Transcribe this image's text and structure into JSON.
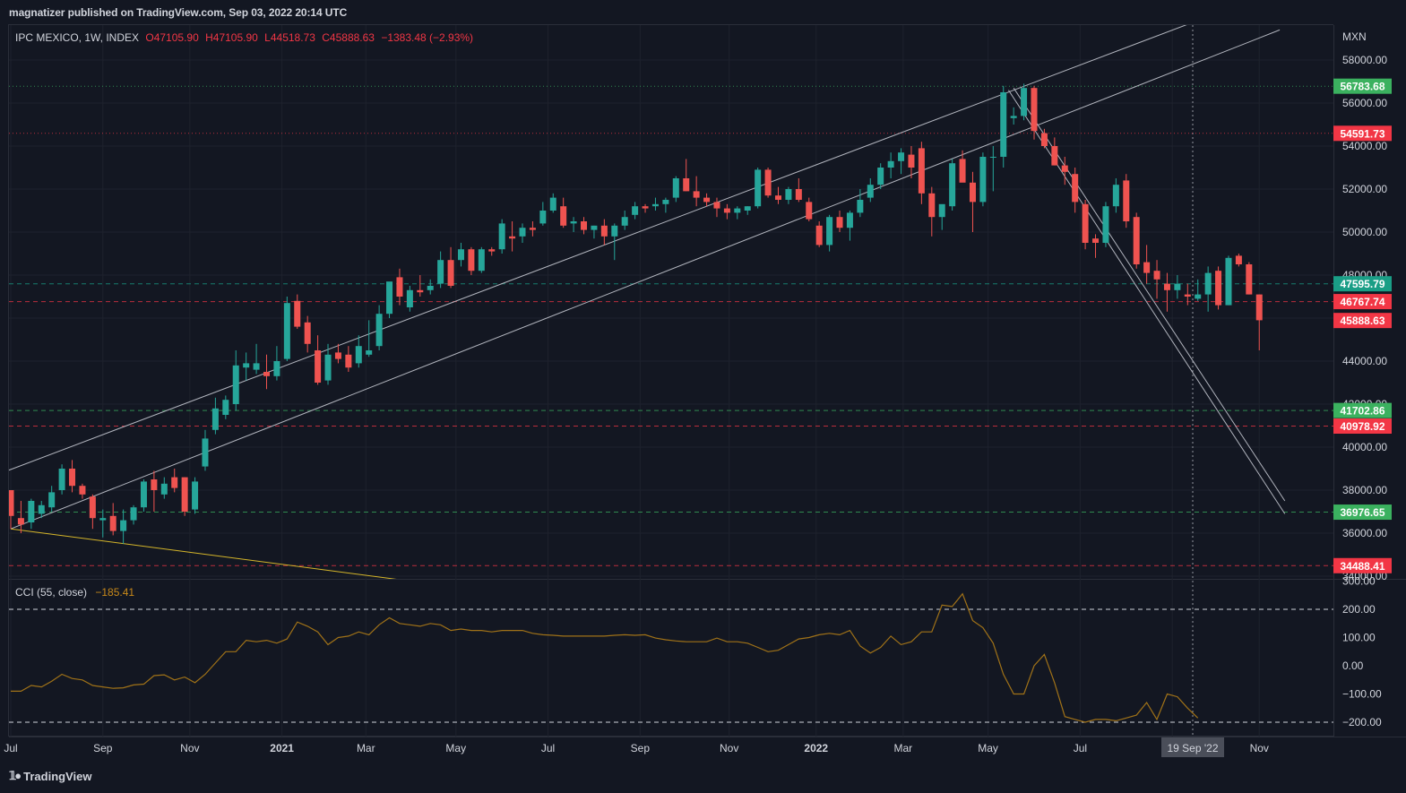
{
  "header": {
    "publisher": "magnatizer published on TradingView.com, Sep 03, 2022 20:14 UTC"
  },
  "legend": {
    "symbol": "IPC MEXICO, 1W, INDEX",
    "open": "O47105.90",
    "high": "H47105.90",
    "low": "L44518.73",
    "close": "C45888.63",
    "change": "−1383.48 (−2.93%)"
  },
  "footer": {
    "brand": "TradingView"
  },
  "colors": {
    "background": "#131722",
    "up": "#26a69a",
    "down": "#ef5350",
    "trendline": "#b2b5be",
    "support_line": "#d4b52a",
    "cci_line": "#a07218",
    "green_tag": "#3bb15f",
    "red_tag": "#f23645",
    "teal_tag": "#1a9e86"
  },
  "chart_data": [
    {
      "type": "candlestick",
      "title": "IPC MEXICO, 1W, INDEX",
      "currency": "MXN",
      "ylim": [
        33200,
        59800
      ],
      "y_ticks": [
        34000,
        36000,
        38000,
        40000,
        42000,
        44000,
        46000,
        48000,
        50000,
        52000,
        54000,
        56000,
        58000
      ],
      "x_ticks": [
        "Jul",
        "Sep",
        "Nov",
        "2021",
        "Mar",
        "May",
        "Jul",
        "Sep",
        "Nov",
        "2022",
        "Mar",
        "May",
        "Jul",
        "Sep",
        "Nov"
      ],
      "x_tick_weeks": [
        0,
        9,
        17.5,
        26.5,
        34.7,
        43.5,
        52.5,
        61.5,
        70.2,
        78.7,
        87.2,
        95.5,
        104.5,
        113.5,
        122
      ],
      "crosshair_label": "19 Sep '22",
      "crosshair_week": 115.5,
      "grid": true,
      "candles": [
        {
          "o": 38000,
          "h": 38000,
          "l": 36200,
          "c": 36800
        },
        {
          "o": 36700,
          "h": 37500,
          "l": 36000,
          "c": 36400
        },
        {
          "o": 36500,
          "h": 37600,
          "l": 36200,
          "c": 37500
        },
        {
          "o": 36900,
          "h": 37500,
          "l": 36700,
          "c": 37300
        },
        {
          "o": 37200,
          "h": 38200,
          "l": 37000,
          "c": 37900
        },
        {
          "o": 38000,
          "h": 39200,
          "l": 37800,
          "c": 39000
        },
        {
          "o": 39000,
          "h": 39400,
          "l": 37900,
          "c": 38200
        },
        {
          "o": 38200,
          "h": 38300,
          "l": 37600,
          "c": 37800
        },
        {
          "o": 37700,
          "h": 37800,
          "l": 36200,
          "c": 36700
        },
        {
          "o": 36600,
          "h": 37100,
          "l": 35800,
          "c": 36700
        },
        {
          "o": 36800,
          "h": 37400,
          "l": 35900,
          "c": 36100
        },
        {
          "o": 36100,
          "h": 37100,
          "l": 35500,
          "c": 36600
        },
        {
          "o": 36600,
          "h": 37300,
          "l": 36400,
          "c": 37200
        },
        {
          "o": 37200,
          "h": 38500,
          "l": 37000,
          "c": 38400
        },
        {
          "o": 38500,
          "h": 38900,
          "l": 37000,
          "c": 38000
        },
        {
          "o": 37800,
          "h": 38600,
          "l": 37600,
          "c": 38300
        },
        {
          "o": 38600,
          "h": 39000,
          "l": 37900,
          "c": 38100
        },
        {
          "o": 38600,
          "h": 38600,
          "l": 36800,
          "c": 37000
        },
        {
          "o": 37100,
          "h": 38600,
          "l": 36900,
          "c": 38400
        },
        {
          "o": 39100,
          "h": 40800,
          "l": 38900,
          "c": 40400
        },
        {
          "o": 40800,
          "h": 42300,
          "l": 40600,
          "c": 41800
        },
        {
          "o": 41500,
          "h": 42400,
          "l": 41300,
          "c": 42200
        },
        {
          "o": 42000,
          "h": 44500,
          "l": 41700,
          "c": 43800
        },
        {
          "o": 43700,
          "h": 44400,
          "l": 43100,
          "c": 43900
        },
        {
          "o": 43600,
          "h": 44800,
          "l": 43400,
          "c": 43900
        },
        {
          "o": 43500,
          "h": 44300,
          "l": 42700,
          "c": 43300
        },
        {
          "o": 43300,
          "h": 44700,
          "l": 43100,
          "c": 44000
        },
        {
          "o": 44100,
          "h": 47000,
          "l": 44000,
          "c": 46700
        },
        {
          "o": 46800,
          "h": 47100,
          "l": 45500,
          "c": 45600
        },
        {
          "o": 45800,
          "h": 46100,
          "l": 44400,
          "c": 44800
        },
        {
          "o": 44500,
          "h": 45200,
          "l": 42900,
          "c": 43000
        },
        {
          "o": 43100,
          "h": 44800,
          "l": 42900,
          "c": 44300
        },
        {
          "o": 44400,
          "h": 44800,
          "l": 43900,
          "c": 44100
        },
        {
          "o": 44300,
          "h": 44700,
          "l": 43500,
          "c": 43700
        },
        {
          "o": 43900,
          "h": 45200,
          "l": 43700,
          "c": 44700
        },
        {
          "o": 44300,
          "h": 45900,
          "l": 44200,
          "c": 44500
        },
        {
          "o": 44700,
          "h": 46600,
          "l": 44500,
          "c": 46200
        },
        {
          "o": 46200,
          "h": 47500,
          "l": 46000,
          "c": 47700
        },
        {
          "o": 47900,
          "h": 48300,
          "l": 46600,
          "c": 47000
        },
        {
          "o": 46500,
          "h": 47500,
          "l": 46300,
          "c": 47300
        },
        {
          "o": 47300,
          "h": 48000,
          "l": 47000,
          "c": 47200
        },
        {
          "o": 47300,
          "h": 47800,
          "l": 47100,
          "c": 47500
        },
        {
          "o": 47600,
          "h": 49100,
          "l": 47400,
          "c": 48700
        },
        {
          "o": 48700,
          "h": 49300,
          "l": 47400,
          "c": 47500
        },
        {
          "o": 48700,
          "h": 49500,
          "l": 48400,
          "c": 49200
        },
        {
          "o": 49200,
          "h": 49300,
          "l": 48000,
          "c": 48200
        },
        {
          "o": 48200,
          "h": 49300,
          "l": 48100,
          "c": 49200
        },
        {
          "o": 49200,
          "h": 49300,
          "l": 48900,
          "c": 49100
        },
        {
          "o": 49200,
          "h": 50600,
          "l": 49000,
          "c": 50400
        },
        {
          "o": 49800,
          "h": 50500,
          "l": 49100,
          "c": 49700
        },
        {
          "o": 49800,
          "h": 50400,
          "l": 49500,
          "c": 50200
        },
        {
          "o": 50200,
          "h": 50500,
          "l": 49800,
          "c": 50100
        },
        {
          "o": 50400,
          "h": 51400,
          "l": 50300,
          "c": 51000
        },
        {
          "o": 51000,
          "h": 51800,
          "l": 50900,
          "c": 51600
        },
        {
          "o": 51200,
          "h": 51600,
          "l": 50200,
          "c": 50300
        },
        {
          "o": 50400,
          "h": 50700,
          "l": 50000,
          "c": 50500
        },
        {
          "o": 50500,
          "h": 50700,
          "l": 49900,
          "c": 50100
        },
        {
          "o": 50100,
          "h": 50300,
          "l": 49700,
          "c": 50300
        },
        {
          "o": 50300,
          "h": 50600,
          "l": 49400,
          "c": 49800
        },
        {
          "o": 49800,
          "h": 50400,
          "l": 48700,
          "c": 50300
        },
        {
          "o": 50300,
          "h": 51000,
          "l": 50100,
          "c": 50700
        },
        {
          "o": 50800,
          "h": 51400,
          "l": 50600,
          "c": 51200
        },
        {
          "o": 51200,
          "h": 51300,
          "l": 50900,
          "c": 51100
        },
        {
          "o": 51200,
          "h": 51600,
          "l": 51000,
          "c": 51300
        },
        {
          "o": 51300,
          "h": 51600,
          "l": 50900,
          "c": 51500
        },
        {
          "o": 51600,
          "h": 52600,
          "l": 51400,
          "c": 52500
        },
        {
          "o": 52500,
          "h": 53400,
          "l": 51900,
          "c": 51900
        },
        {
          "o": 51900,
          "h": 52600,
          "l": 51200,
          "c": 51600
        },
        {
          "o": 51600,
          "h": 51800,
          "l": 51200,
          "c": 51400
        },
        {
          "o": 51400,
          "h": 51600,
          "l": 50700,
          "c": 51100
        },
        {
          "o": 51100,
          "h": 51300,
          "l": 50600,
          "c": 50900
        },
        {
          "o": 50900,
          "h": 51200,
          "l": 50600,
          "c": 51100
        },
        {
          "o": 51000,
          "h": 51200,
          "l": 50800,
          "c": 51200
        },
        {
          "o": 51200,
          "h": 53000,
          "l": 51100,
          "c": 52900
        },
        {
          "o": 52900,
          "h": 53000,
          "l": 51600,
          "c": 51700
        },
        {
          "o": 51700,
          "h": 52100,
          "l": 51300,
          "c": 51500
        },
        {
          "o": 51500,
          "h": 52100,
          "l": 51300,
          "c": 52000
        },
        {
          "o": 52000,
          "h": 52500,
          "l": 51400,
          "c": 51500
        },
        {
          "o": 51400,
          "h": 51600,
          "l": 50500,
          "c": 50600
        },
        {
          "o": 50300,
          "h": 50500,
          "l": 49300,
          "c": 49400
        },
        {
          "o": 49400,
          "h": 50800,
          "l": 49100,
          "c": 50700
        },
        {
          "o": 50700,
          "h": 51000,
          "l": 50000,
          "c": 50200
        },
        {
          "o": 50200,
          "h": 51000,
          "l": 49600,
          "c": 50900
        },
        {
          "o": 50900,
          "h": 52000,
          "l": 50700,
          "c": 51500
        },
        {
          "o": 51600,
          "h": 52500,
          "l": 51400,
          "c": 52200
        },
        {
          "o": 52200,
          "h": 53200,
          "l": 52000,
          "c": 53000
        },
        {
          "o": 53000,
          "h": 53700,
          "l": 52500,
          "c": 53300
        },
        {
          "o": 53300,
          "h": 53900,
          "l": 52700,
          "c": 53700
        },
        {
          "o": 53600,
          "h": 54000,
          "l": 52500,
          "c": 53000
        },
        {
          "o": 53900,
          "h": 54200,
          "l": 51300,
          "c": 51800
        },
        {
          "o": 51800,
          "h": 52100,
          "l": 49800,
          "c": 50700
        },
        {
          "o": 50700,
          "h": 51200,
          "l": 50100,
          "c": 51300
        },
        {
          "o": 51200,
          "h": 53400,
          "l": 51000,
          "c": 53200
        },
        {
          "o": 53400,
          "h": 53800,
          "l": 52400,
          "c": 52300
        },
        {
          "o": 52300,
          "h": 52800,
          "l": 50000,
          "c": 51400
        },
        {
          "o": 51400,
          "h": 53700,
          "l": 51200,
          "c": 53500
        },
        {
          "o": 53500,
          "h": 54000,
          "l": 51900,
          "c": 53500
        },
        {
          "o": 53500,
          "h": 56800,
          "l": 53000,
          "c": 56500
        },
        {
          "o": 55300,
          "h": 55800,
          "l": 55000,
          "c": 55400
        },
        {
          "o": 55400,
          "h": 56900,
          "l": 55200,
          "c": 56700
        },
        {
          "o": 56700,
          "h": 56800,
          "l": 54300,
          "c": 54700
        },
        {
          "o": 54600,
          "h": 54800,
          "l": 53900,
          "c": 54000
        },
        {
          "o": 54000,
          "h": 54400,
          "l": 53100,
          "c": 53100
        },
        {
          "o": 53100,
          "h": 53500,
          "l": 52200,
          "c": 52800
        },
        {
          "o": 52700,
          "h": 53000,
          "l": 50900,
          "c": 51400
        },
        {
          "o": 51300,
          "h": 51500,
          "l": 49200,
          "c": 49500
        },
        {
          "o": 49700,
          "h": 49900,
          "l": 48800,
          "c": 49500
        },
        {
          "o": 49500,
          "h": 51400,
          "l": 49300,
          "c": 51200
        },
        {
          "o": 51200,
          "h": 52500,
          "l": 50900,
          "c": 52200
        },
        {
          "o": 52400,
          "h": 52700,
          "l": 50200,
          "c": 50500
        },
        {
          "o": 50700,
          "h": 50900,
          "l": 48300,
          "c": 48500
        },
        {
          "o": 48600,
          "h": 49400,
          "l": 47600,
          "c": 48100
        },
        {
          "o": 48200,
          "h": 48700,
          "l": 46900,
          "c": 47800
        },
        {
          "o": 47600,
          "h": 48100,
          "l": 46300,
          "c": 47300
        },
        {
          "o": 47300,
          "h": 48000,
          "l": 46900,
          "c": 47600
        },
        {
          "o": 47100,
          "h": 47600,
          "l": 46600,
          "c": 47000
        },
        {
          "o": 46900,
          "h": 47800,
          "l": 46800,
          "c": 47100
        },
        {
          "o": 47100,
          "h": 48400,
          "l": 46300,
          "c": 48100
        },
        {
          "o": 48200,
          "h": 48400,
          "l": 46400,
          "c": 46600
        },
        {
          "o": 46600,
          "h": 48900,
          "l": 46600,
          "c": 48800
        },
        {
          "o": 48900,
          "h": 49000,
          "l": 48400,
          "c": 48500
        },
        {
          "o": 48500,
          "h": 48600,
          "l": 47100,
          "c": 47100
        },
        {
          "o": 47100,
          "h": 47100,
          "l": 44500,
          "c": 45900
        }
      ],
      "price_tags": [
        {
          "label": "56783.68",
          "value": 56783.68,
          "color": "#3bb15f",
          "line": "dotted"
        },
        {
          "label": "54591.73",
          "value": 54591.73,
          "color": "#f23645",
          "line": "dotted"
        },
        {
          "label": "47595.79",
          "value": 47595.79,
          "color": "#1a9e86",
          "line": "dashed"
        },
        {
          "label": "46767.74",
          "value": 46767.74,
          "color": "#f23645",
          "line": "dashed"
        },
        {
          "label": "45888.63",
          "value": 45888.63,
          "color": "#f23645",
          "line": "none"
        },
        {
          "label": "41702.86",
          "value": 41702.86,
          "color": "#3bb15f",
          "line": "dashed"
        },
        {
          "label": "40978.92",
          "value": 40978.92,
          "color": "#f23645",
          "line": "dashed"
        },
        {
          "label": "36976.65",
          "value": 36976.65,
          "color": "#3bb15f",
          "line": "dashed"
        },
        {
          "label": "34488.41",
          "value": 34488.41,
          "color": "#f23645",
          "line": "dashed"
        }
      ],
      "trendlines": [
        {
          "x1": -2,
          "y1": 38600,
          "x2": 118,
          "y2": 60200,
          "color": "#b2b5be"
        },
        {
          "x1": 0,
          "y1": 36200,
          "x2": 124,
          "y2": 59400,
          "color": "#b2b5be"
        },
        {
          "x1": 0,
          "y1": 36200,
          "x2": 45,
          "y2": 33400,
          "color": "#d4b52a"
        },
        {
          "x1": -2,
          "y1": 33900,
          "x2": 3,
          "y2": 33500,
          "color": "#d4b52a"
        },
        {
          "x1": 98,
          "y1": 56700,
          "x2": 124.5,
          "y2": 37500,
          "color": "#b2b5be"
        },
        {
          "x1": 97.5,
          "y1": 56600,
          "x2": 124.5,
          "y2": 36900,
          "color": "#b2b5be"
        }
      ]
    },
    {
      "type": "line",
      "title": "CCI (55, close)",
      "last_value": "−185.41",
      "ylim": [
        -250,
        320
      ],
      "y_ticks": [
        -200,
        -100,
        0,
        100,
        200,
        300
      ],
      "y_tick_labels": [
        "−200.00",
        "−100.00",
        "0.00",
        "100.00",
        "200.00",
        "300.00"
      ],
      "levels": [
        200,
        -200
      ],
      "values": [
        -90,
        -90,
        -70,
        -75,
        -55,
        -30,
        -45,
        -50,
        -70,
        -75,
        -80,
        -78,
        -68,
        -65,
        -35,
        -32,
        -50,
        -40,
        -60,
        -30,
        10,
        50,
        50,
        90,
        85,
        90,
        80,
        95,
        155,
        140,
        120,
        75,
        100,
        105,
        120,
        110,
        145,
        170,
        150,
        145,
        140,
        150,
        145,
        125,
        130,
        125,
        125,
        120,
        125,
        125,
        125,
        115,
        110,
        108,
        105,
        105,
        105,
        105,
        105,
        108,
        110,
        108,
        110,
        98,
        92,
        88,
        85,
        85,
        85,
        98,
        85,
        85,
        80,
        65,
        50,
        55,
        75,
        95,
        100,
        110,
        115,
        110,
        125,
        70,
        45,
        65,
        105,
        75,
        85,
        120,
        120,
        215,
        210,
        255,
        160,
        135,
        80,
        -30,
        -100,
        -100,
        0,
        40,
        -60,
        -180,
        -190,
        -200,
        -190,
        -190,
        -195,
        -185,
        -175,
        -130,
        -190,
        -100,
        -110,
        -150,
        -185
      ]
    }
  ]
}
